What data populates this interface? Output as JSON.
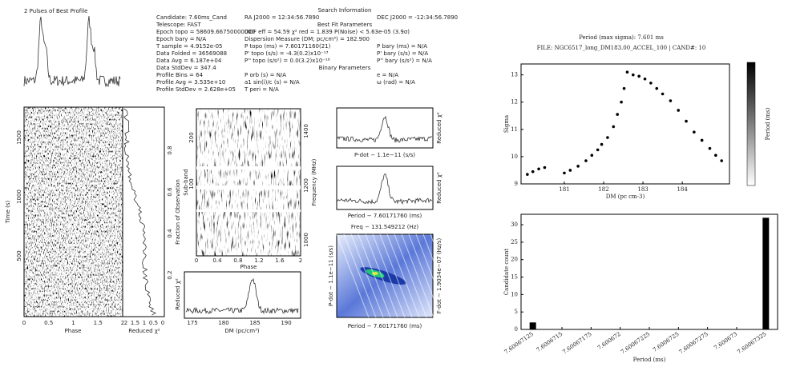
{
  "prepfold": {
    "profile_title": "2 Pulses of Best Profile",
    "search_title": "Search Information",
    "info_left": [
      "Candidate: 7.60ms_Cand",
      "Telescope: FAST",
      "Epoch topo = 58609.66750000000",
      "Epoch bary = N/A",
      "T sample = 4.9152e-05",
      "Data Folded = 36569088",
      "Data Avg = 6.187e+04",
      "Data StdDev = 347.4",
      "Profile Bins = 64",
      "Profile Avg = 3.535e+10",
      "Profile StdDev = 2.628e+05"
    ],
    "info_right": [
      [
        "RA J2000 = 12:34:56.7890",
        "DEC J2000 = -12:34:56.7890"
      ],
      [
        "Best Fit Parameters"
      ],
      [
        "DOF eff = 54.59  χ² red = 1.839  P(Noise) < 5.63e-05 (3.9σ)"
      ],
      [
        "Dispersion Measure (DM; pc/cm³) = 182.900"
      ],
      [
        "P topo (ms) = 7.60171160(21)",
        "P bary (ms) = N/A"
      ],
      [
        "P' topo (s/s) = -4.3(0.2)x10⁻¹³",
        "P' bary (s/s) = N/A"
      ],
      [
        "P'' topo (s/s²) = 0.0(3.2)x10⁻¹⁸",
        "P'' bary (s/s²) = N/A"
      ],
      [
        "Binary Parameters"
      ],
      [
        "P orb (s) = N/A",
        "e = N/A"
      ],
      [
        "a1 sin(i)/c (s) = N/A",
        "ω (rad) = N/A"
      ],
      [
        "T peri = N/A"
      ]
    ],
    "time_phase": {
      "ylabel": "Time (s)",
      "xlabel": "Phase",
      "xticks": [
        "0",
        "0.5",
        "1",
        "1.5",
        "2"
      ],
      "yticks": [
        "500",
        "1000",
        "1500"
      ]
    },
    "chi2": {
      "xlabel": "Reduced χ²",
      "xticks": [
        "2",
        "1.5",
        "1",
        "0.5",
        "0"
      ],
      "ylabel": "Fraction of Observation",
      "yticks": [
        "0.2",
        "0.4",
        "0.6",
        "0.8"
      ]
    },
    "subband": {
      "ylabel": "Sub-band",
      "yticks": [
        "100",
        "200"
      ],
      "y2label": "Frequency (MHz)",
      "y2ticks": [
        "1000",
        "1200",
        "1400"
      ],
      "xlabel": "Phase",
      "xticks": [
        "0",
        "0.4",
        "0.8",
        "1.2",
        "1.6",
        "2"
      ]
    },
    "dm": {
      "ylabel": "Reduced χ²",
      "xlabel": "DM (pc/cm³)",
      "xticks": [
        "175",
        "180",
        "185",
        "190"
      ]
    },
    "pdot": {
      "xlabel": "P-dot − 1.1e−11 (s/s)",
      "ylabel": "Reduced χ²"
    },
    "period": {
      "xlabel": "Period − 7.60171760 (ms)",
      "ylabel": "Reduced χ²"
    },
    "contour": {
      "title": "Freq − 131.549212 (Hz)",
      "ylabel": "P-dot − 1.1e−11 (s/s)",
      "y2label": "F-dot − 1.9034e−07 (Hz/s)",
      "xlabel": "Period − 7.60171760 (ms)"
    }
  },
  "chart_data": [
    {
      "type": "scatter",
      "title": "Period (max sigma): 7.601 ms",
      "subtitle": "FILE: NGC6517_long_DM183.00_ACCEL_100 | CAND#: 10",
      "xlabel": "DM (pc cm-3)",
      "ylabel": "Sigma",
      "colorbar_label": "Period (ms)",
      "color": "#000000",
      "x": [
        180.06,
        180.2,
        180.35,
        180.5,
        181.0,
        181.15,
        181.35,
        181.55,
        181.7,
        181.85,
        181.95,
        182.1,
        182.25,
        182.35,
        182.45,
        182.52,
        182.6,
        182.75,
        182.9,
        183.05,
        183.2,
        183.35,
        183.5,
        183.7,
        183.9,
        184.1,
        184.3,
        184.5,
        184.7,
        184.85,
        185.0
      ],
      "y": [
        9.35,
        9.45,
        9.55,
        9.6,
        9.4,
        9.5,
        9.65,
        9.85,
        10.05,
        10.25,
        10.45,
        10.7,
        11.1,
        11.55,
        12.0,
        12.5,
        13.1,
        13.0,
        12.95,
        12.85,
        12.7,
        12.5,
        12.3,
        12.05,
        11.7,
        11.3,
        10.9,
        10.6,
        10.3,
        10.05,
        9.85
      ],
      "xlim": [
        179.9,
        185.2
      ],
      "xticks": [
        181,
        182,
        183,
        184
      ],
      "ylim": [
        9,
        13.4
      ],
      "yticks": [
        9,
        10,
        11,
        12,
        13
      ]
    },
    {
      "type": "bar",
      "xlabel": "Period (ms)",
      "ylabel": "Candidate count",
      "color": "#000000",
      "x": [
        7.60067125,
        7.60067325
      ],
      "values": [
        2,
        32
      ],
      "xlim": [
        7.600671149,
        7.600673351
      ],
      "xticks": [
        7.60067125,
        7.6006715,
        7.60067175,
        7.600672,
        7.60067225,
        7.6006725,
        7.60067275,
        7.600673,
        7.60067325
      ],
      "ylim": [
        0,
        33
      ],
      "yticks": [
        0,
        5,
        10,
        15,
        20,
        25,
        30
      ]
    }
  ]
}
